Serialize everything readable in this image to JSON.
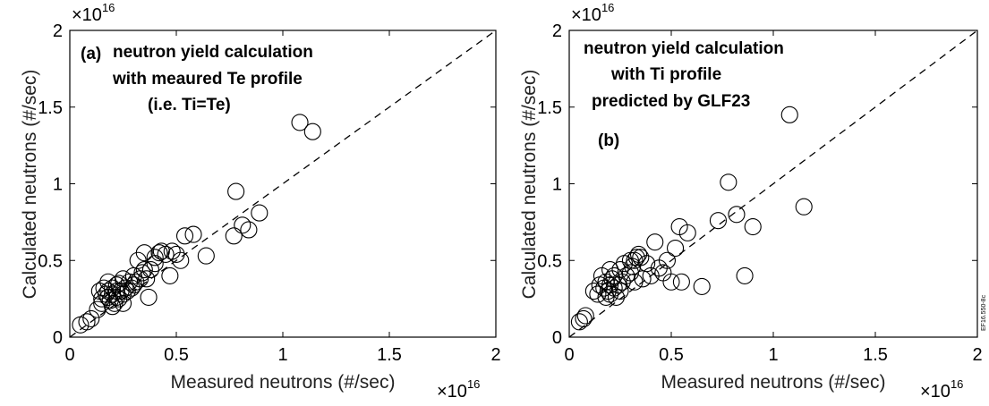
{
  "chart_data": [
    {
      "type": "scatter",
      "panel_label": "(a)",
      "annotation_lines": [
        "neutron yield calculation",
        "with meaured Te profile",
        "(i.e. Ti=Te)"
      ],
      "xlabel": "Measured neutrons (#/sec)",
      "ylabel": "Calculated neutrons (#/sec)",
      "xlim": [
        0,
        2
      ],
      "ylim": [
        0,
        2
      ],
      "xticks": [
        "0",
        "0.5",
        "1",
        "1.5",
        "2"
      ],
      "yticks": [
        "0",
        "0.5",
        "1",
        "1.5",
        "2"
      ],
      "x_exponent": "×10",
      "x_exponent_power": "16",
      "y_exponent": "×10",
      "y_exponent_power": "16",
      "reference_line": "y = x (dashed)",
      "grid": false,
      "marker": "open circle",
      "x": [
        0.05,
        0.08,
        0.1,
        0.13,
        0.14,
        0.15,
        0.15,
        0.16,
        0.17,
        0.18,
        0.18,
        0.19,
        0.2,
        0.2,
        0.21,
        0.22,
        0.22,
        0.23,
        0.23,
        0.24,
        0.25,
        0.25,
        0.26,
        0.27,
        0.28,
        0.29,
        0.3,
        0.3,
        0.31,
        0.32,
        0.33,
        0.34,
        0.35,
        0.35,
        0.36,
        0.37,
        0.38,
        0.4,
        0.4,
        0.42,
        0.43,
        0.45,
        0.47,
        0.48,
        0.5,
        0.52,
        0.54,
        0.58,
        0.64,
        0.77,
        0.78,
        0.81,
        0.84,
        0.89,
        1.08,
        1.14,
        0.2,
        0.22,
        0.18,
        0.25
      ],
      "y": [
        0.08,
        0.1,
        0.12,
        0.18,
        0.3,
        0.25,
        0.22,
        0.32,
        0.28,
        0.26,
        0.3,
        0.24,
        0.28,
        0.32,
        0.22,
        0.26,
        0.3,
        0.25,
        0.35,
        0.3,
        0.28,
        0.38,
        0.32,
        0.3,
        0.36,
        0.32,
        0.34,
        0.4,
        0.36,
        0.5,
        0.38,
        0.42,
        0.44,
        0.55,
        0.38,
        0.26,
        0.44,
        0.48,
        0.52,
        0.55,
        0.56,
        0.54,
        0.4,
        0.56,
        0.54,
        0.5,
        0.66,
        0.67,
        0.53,
        0.66,
        0.95,
        0.73,
        0.7,
        0.81,
        1.4,
        1.34,
        0.2,
        0.34,
        0.36,
        0.22
      ]
    },
    {
      "type": "scatter",
      "panel_label": "(b)",
      "annotation_lines": [
        "neutron yield calculation",
        "with Ti profile",
        "predicted by GLF23"
      ],
      "xlabel": "Measured neutrons (#/sec)",
      "ylabel": "Calculated neutrons (#/sec)",
      "xlim": [
        0,
        2
      ],
      "ylim": [
        0,
        2
      ],
      "xticks": [
        "0",
        "0.5",
        "1",
        "1.5",
        "2"
      ],
      "yticks": [
        "0",
        "0.5",
        "1",
        "1.5",
        "2"
      ],
      "x_exponent": "×10",
      "x_exponent_power": "16",
      "y_exponent": "×10",
      "y_exponent_power": "16",
      "reference_line": "y = x (dashed)",
      "grid": false,
      "marker": "open circle",
      "side_tag": "EF16.550-8c",
      "x": [
        0.05,
        0.07,
        0.08,
        0.12,
        0.14,
        0.15,
        0.16,
        0.17,
        0.18,
        0.19,
        0.2,
        0.2,
        0.21,
        0.22,
        0.22,
        0.23,
        0.24,
        0.25,
        0.26,
        0.27,
        0.28,
        0.3,
        0.3,
        0.31,
        0.32,
        0.33,
        0.34,
        0.35,
        0.36,
        0.38,
        0.4,
        0.42,
        0.44,
        0.46,
        0.48,
        0.5,
        0.52,
        0.54,
        0.55,
        0.58,
        0.65,
        0.73,
        0.78,
        0.82,
        0.86,
        0.9,
        1.08,
        1.15,
        0.18,
        0.25,
        0.2,
        0.32
      ],
      "y": [
        0.1,
        0.12,
        0.14,
        0.3,
        0.28,
        0.34,
        0.4,
        0.32,
        0.36,
        0.3,
        0.28,
        0.34,
        0.38,
        0.32,
        0.4,
        0.26,
        0.34,
        0.44,
        0.36,
        0.48,
        0.4,
        0.5,
        0.42,
        0.46,
        0.5,
        0.52,
        0.54,
        0.52,
        0.38,
        0.48,
        0.4,
        0.62,
        0.45,
        0.42,
        0.5,
        0.36,
        0.58,
        0.72,
        0.36,
        0.68,
        0.33,
        0.76,
        1.01,
        0.8,
        0.4,
        0.72,
        1.45,
        0.85,
        0.26,
        0.3,
        0.44,
        0.36
      ]
    }
  ]
}
